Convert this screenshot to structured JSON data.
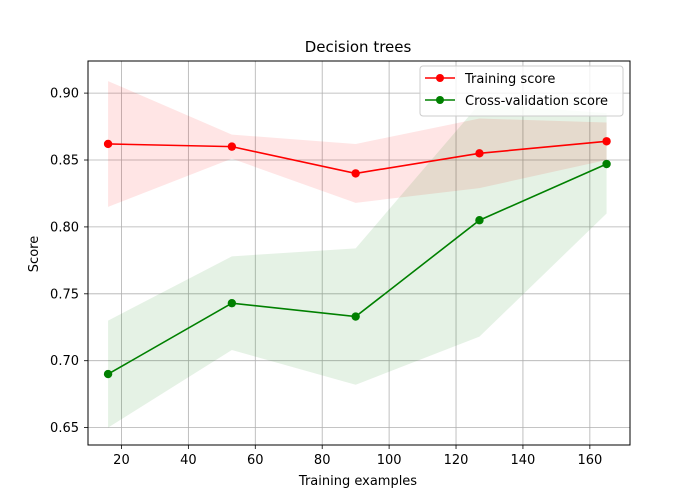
{
  "chart_data": {
    "type": "line",
    "title": "Decision trees",
    "xlabel": "Training examples",
    "ylabel": "Score",
    "xlim": [
      10,
      172
    ],
    "ylim": [
      0.637,
      0.924
    ],
    "xticks": [
      "20",
      "40",
      "60",
      "80",
      "100",
      "120",
      "140",
      "160"
    ],
    "yticks": [
      "0.65",
      "0.70",
      "0.75",
      "0.80",
      "0.85",
      "0.90"
    ],
    "grid": true,
    "legend_position": "top-right",
    "x": [
      16,
      53,
      90,
      127,
      165
    ],
    "series": [
      {
        "name": "Training score",
        "color": "#ff0000",
        "values": [
          0.862,
          0.86,
          0.84,
          0.855,
          0.864
        ],
        "band_lower": [
          0.815,
          0.851,
          0.818,
          0.829,
          0.85
        ],
        "band_upper": [
          0.909,
          0.869,
          0.862,
          0.881,
          0.878
        ]
      },
      {
        "name": "Cross-validation score",
        "color": "#008000",
        "values": [
          0.69,
          0.743,
          0.733,
          0.805,
          0.847
        ],
        "band_lower": [
          0.65,
          0.708,
          0.682,
          0.718,
          0.81
        ],
        "band_upper": [
          0.73,
          0.778,
          0.784,
          0.892,
          0.885
        ]
      }
    ]
  }
}
